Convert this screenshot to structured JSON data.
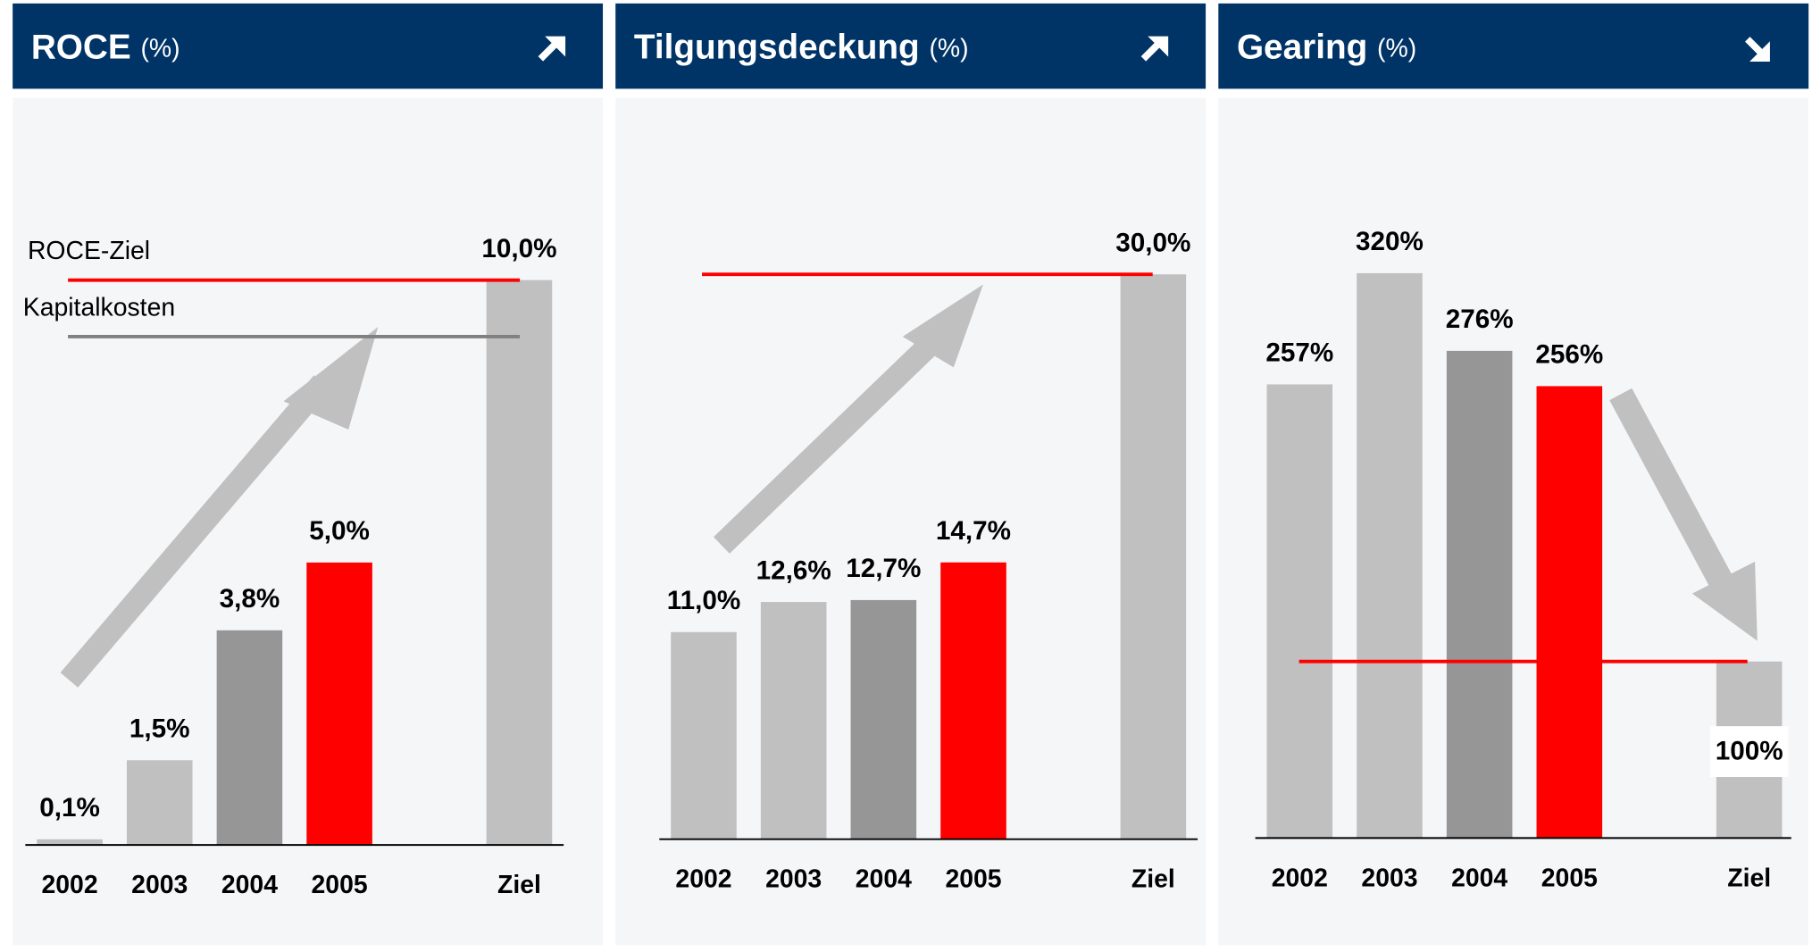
{
  "chart_data": [
    {
      "type": "bar",
      "title": "ROCE",
      "unit": "(%)",
      "categories": [
        "2002",
        "2003",
        "2004",
        "2005",
        "Ziel"
      ],
      "values": [
        0.1,
        1.5,
        3.8,
        5.0,
        10.0
      ],
      "value_labels": [
        "0,1%",
        "1,5%",
        "3,8%",
        "5,0%",
        "10,0%"
      ],
      "colors": [
        "#c0c0c0",
        "#c0c0c0",
        "#969696",
        "#ff0000",
        "#c0c0c0"
      ],
      "lines": [
        {
          "label": "ROCE-Ziel",
          "value": 10.0,
          "color": "#ff0000"
        },
        {
          "label": "Kapitalkosten",
          "value": 9.0,
          "color": "#808080"
        }
      ]
    },
    {
      "type": "bar",
      "title": "Tilgungsdeckung",
      "unit": "(%)",
      "categories": [
        "2002",
        "2003",
        "2004",
        "2005",
        "Ziel"
      ],
      "values": [
        11.0,
        12.6,
        12.7,
        14.7,
        30.0
      ],
      "value_labels": [
        "11,0%",
        "12,6%",
        "12,7%",
        "14,7%",
        "30,0%"
      ],
      "colors": [
        "#c0c0c0",
        "#c0c0c0",
        "#969696",
        "#ff0000",
        "#c0c0c0"
      ],
      "lines": [
        {
          "value": 30.0,
          "color": "#ff0000"
        }
      ]
    },
    {
      "type": "bar",
      "title": "Gearing",
      "unit": "(%)",
      "categories": [
        "2002",
        "2003",
        "2004",
        "2005",
        "Ziel"
      ],
      "values": [
        257,
        320,
        276,
        256,
        100
      ],
      "value_labels": [
        "257%",
        "320%",
        "276%",
        "256%",
        "100%"
      ],
      "colors": [
        "#c0c0c0",
        "#c0c0c0",
        "#969696",
        "#ff0000",
        "#c0c0c0"
      ],
      "lines": [
        {
          "value": 100,
          "color": "#ff0000"
        }
      ]
    }
  ]
}
